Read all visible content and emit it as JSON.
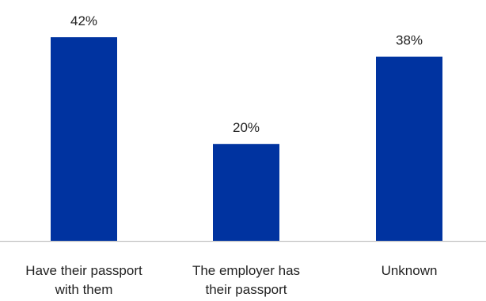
{
  "chart_data": {
    "type": "bar",
    "title": "",
    "xlabel": "",
    "ylabel": "",
    "categories": [
      [
        "Have their passport",
        "with them"
      ],
      [
        "The employer has",
        "their passport"
      ],
      [
        "Unknown"
      ]
    ],
    "values": [
      42,
      20,
      38
    ],
    "value_labels": [
      "42%",
      "20%",
      "38%"
    ],
    "ylim": [
      0,
      50
    ],
    "grid": false,
    "legend": "none",
    "colors": {
      "bar": "#0033a0",
      "axis": "#c8c8c8",
      "text": "#222222"
    }
  }
}
